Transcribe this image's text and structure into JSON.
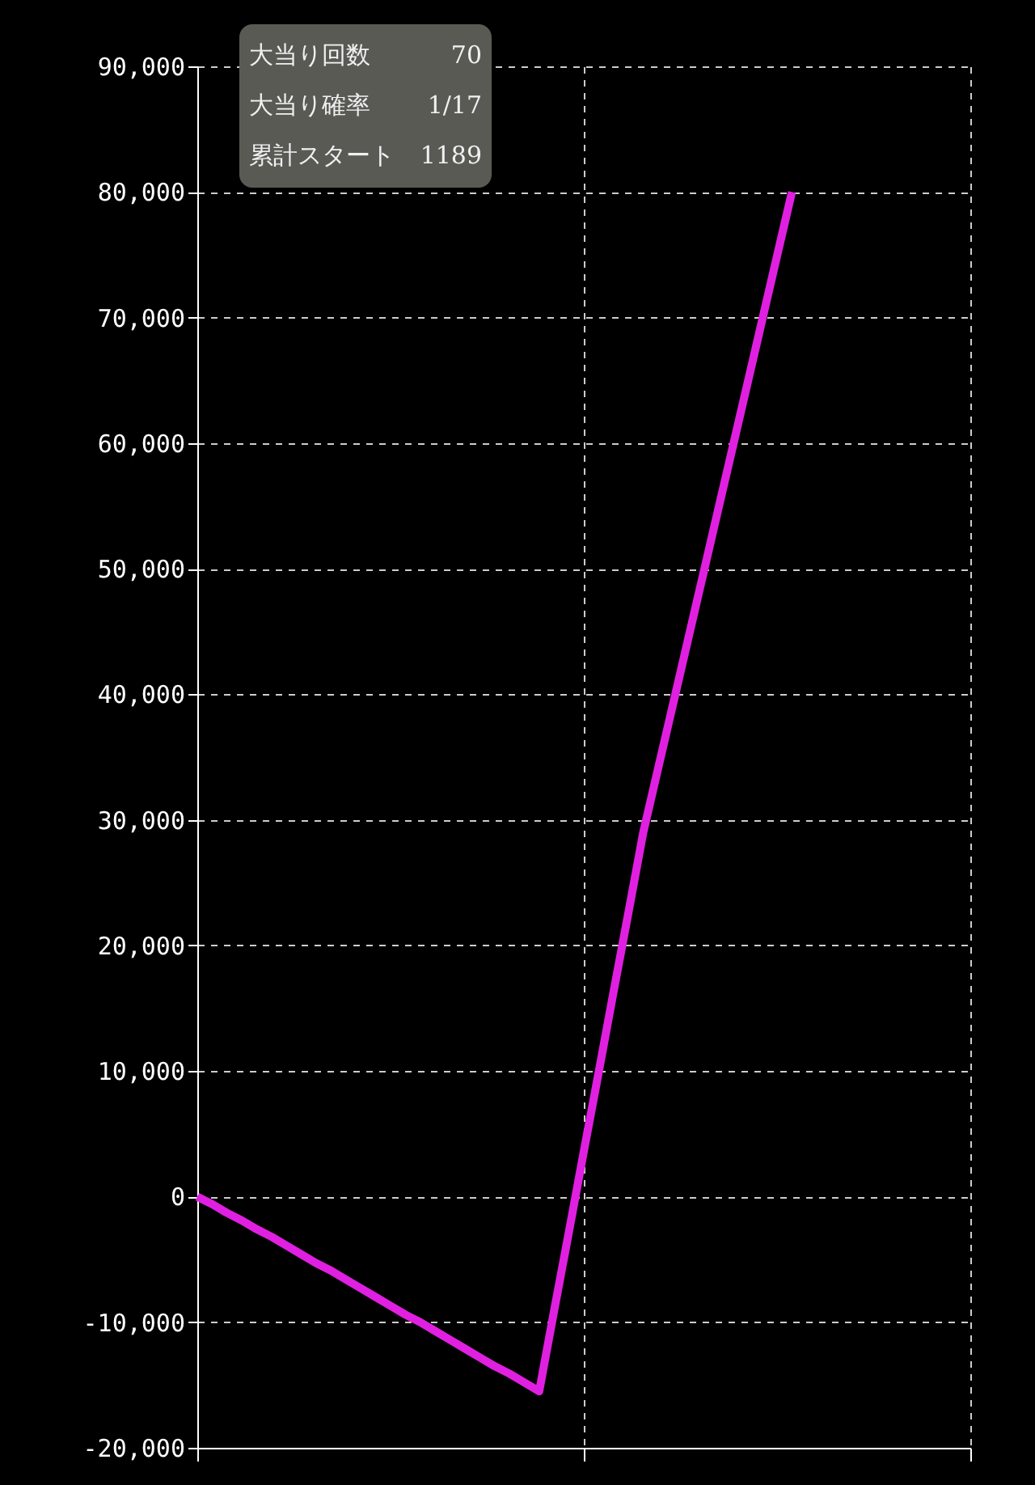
{
  "chart_data": {
    "type": "line",
    "categories": [
      null,
      null,
      null,
      null,
      null,
      null,
      null,
      null,
      null,
      null,
      null,
      null,
      null,
      null,
      null,
      null,
      null,
      null,
      null,
      null,
      null,
      null,
      null,
      null,
      null,
      null,
      null,
      null,
      null,
      null,
      null,
      null,
      null,
      null,
      null,
      null,
      null,
      null,
      null,
      null,
      null,
      null,
      null,
      null,
      null,
      null,
      null,
      null,
      null,
      null,
      null,
      null,
      null
    ],
    "series": [
      {
        "color": "#e020e0",
        "values": [
          0,
          -600,
          -1300,
          -1900,
          -2600,
          -3200,
          -3900,
          -4600,
          -5300,
          -5900,
          -6600,
          -7300,
          -8000,
          -8700,
          -9400,
          -10000,
          -10700,
          -11400,
          -12100,
          -12800,
          -13500,
          -14100,
          -14800,
          -15500,
          -9100,
          -2800,
          3600,
          9900,
          16300,
          22600,
          29000,
          34100,
          39200,
          44300,
          49400,
          54500,
          59600,
          64700,
          69800,
          74900,
          80000,
          null,
          null,
          null,
          null,
          null,
          null,
          null,
          null,
          null,
          null,
          null,
          null
        ]
      }
    ],
    "ylim": [
      -20000,
      90000
    ],
    "yticks": [
      {
        "value": -20000,
        "label": "-20,000"
      },
      {
        "value": -10000,
        "label": "-10,000"
      },
      0,
      {
        "value": 10000,
        "label": "10,000"
      },
      {
        "value": 20000,
        "label": "20,000"
      },
      {
        "value": 30000,
        "label": "30,000"
      },
      {
        "value": 40000,
        "label": "40,000"
      },
      {
        "value": 50000,
        "label": "50,000"
      },
      {
        "value": 60000,
        "label": "60,000"
      },
      {
        "value": 70000,
        "label": "70,000"
      },
      {
        "value": 80000,
        "label": "80,000"
      },
      {
        "value": 90000,
        "label": "90,000"
      }
    ],
    "tick_labels": "y",
    "grid": true,
    "marker": "none",
    "line_style": "solid",
    "annotations": [
      "大当り回数",
      "70",
      "大当り確率",
      "1/17",
      "累計スタート",
      "1189"
    ]
  }
}
